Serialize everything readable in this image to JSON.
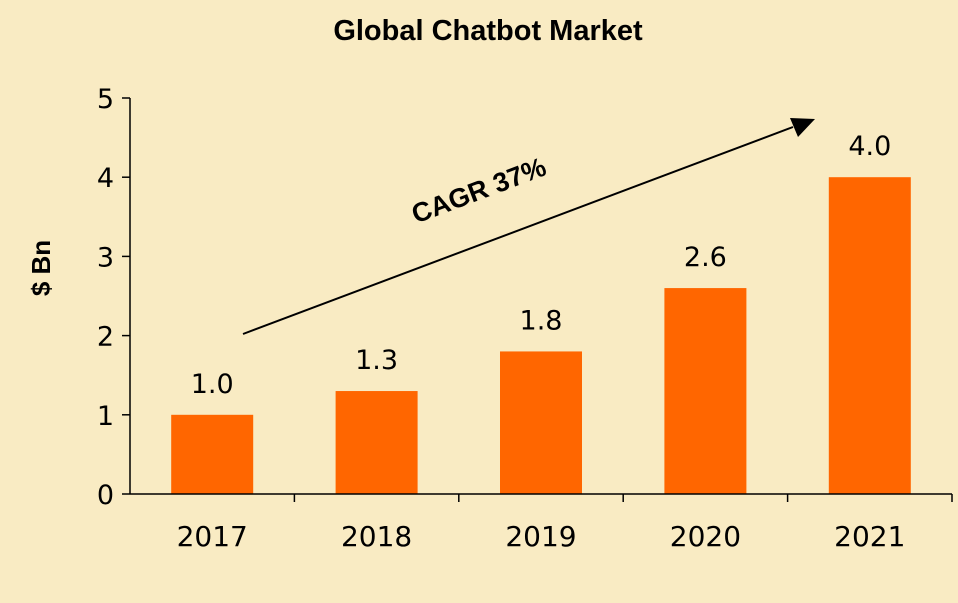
{
  "chart_data": {
    "type": "bar",
    "title": "Global Chatbot Market",
    "xlabel": "",
    "ylabel": "$ Bn",
    "categories": [
      "2017",
      "2018",
      "2019",
      "2020",
      "2021"
    ],
    "values": [
      1.0,
      1.3,
      1.8,
      2.6,
      4.0
    ],
    "data_labels": [
      "1.0",
      "1.3",
      "1.8",
      "2.6",
      "4.0"
    ],
    "ylim": [
      0,
      5
    ],
    "yticks": [
      "0",
      "1",
      "2",
      "3",
      "4",
      "5"
    ],
    "grid": false,
    "legend": "none",
    "annotation": "CAGR 37%",
    "bar_color": "#ff6600",
    "background_color": "#f9ebc3"
  }
}
